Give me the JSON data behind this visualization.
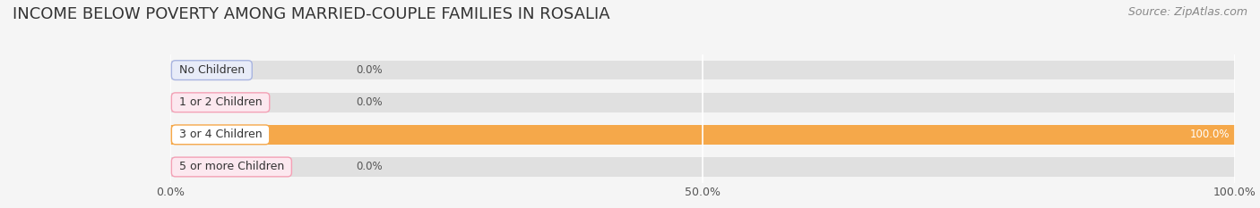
{
  "title": "INCOME BELOW POVERTY AMONG MARRIED-COUPLE FAMILIES IN ROSALIA",
  "source": "Source: ZipAtlas.com",
  "categories": [
    "No Children",
    "1 or 2 Children",
    "3 or 4 Children",
    "5 or more Children"
  ],
  "values": [
    0.0,
    0.0,
    100.0,
    0.0
  ],
  "bar_colors": [
    "#a8b4e0",
    "#f4a0b5",
    "#f5a84a",
    "#f4a0b5"
  ],
  "label_bg_colors": [
    "#e8ecf8",
    "#fce8ef",
    "#ffffff",
    "#fce8ef"
  ],
  "label_border_colors": [
    "#a8b4e0",
    "#f4a0b5",
    "#f5a84a",
    "#f4a0b5"
  ],
  "value_labels": [
    "0.0%",
    "0.0%",
    "100.0%",
    "0.0%"
  ],
  "xlim": [
    0,
    100
  ],
  "xticks": [
    0.0,
    50.0,
    100.0
  ],
  "xticklabels": [
    "0.0%",
    "50.0%",
    "100.0%"
  ],
  "bg_color": "#f5f5f5",
  "bar_bg_color": "#e0e0e0",
  "title_fontsize": 13,
  "source_fontsize": 9,
  "label_fontsize": 9,
  "value_fontsize": 8.5,
  "tick_fontsize": 9,
  "bar_height": 0.6,
  "bar_gap": 0.15
}
